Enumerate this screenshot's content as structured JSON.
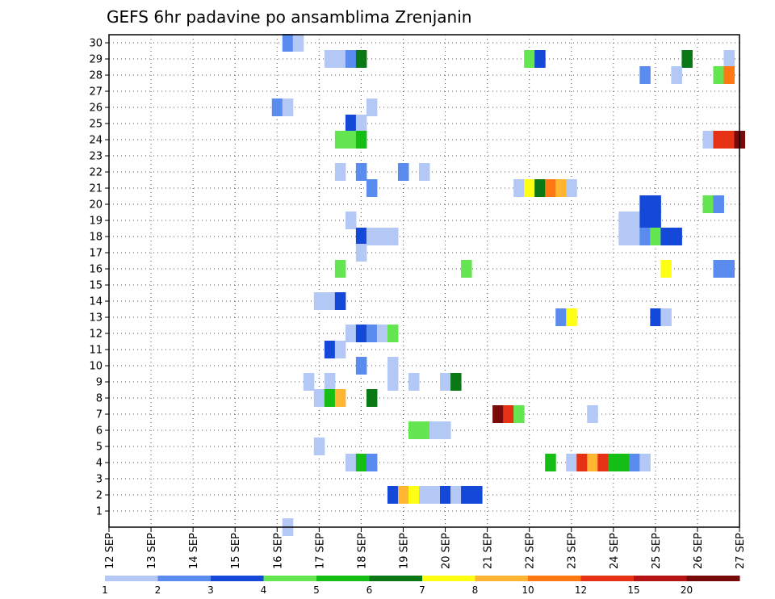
{
  "chart_data": {
    "type": "heatmap",
    "title": "GEFS 6hr padavine po ansamblima Zrenjanin",
    "xlabel": "",
    "ylabel": "",
    "x_range_days": [
      12,
      27
    ],
    "y_range": [
      1,
      30
    ],
    "grid": true,
    "x_ticks": [
      "12 SEP",
      "13 SEP",
      "14 SEP",
      "15 SEP",
      "16 SEP",
      "17 SEP",
      "18 SEP",
      "19 SEP",
      "20 SEP",
      "21 SEP",
      "22 SEP",
      "23 SEP",
      "24 SEP",
      "25 SEP",
      "26 SEP",
      "27 SEP"
    ],
    "y_ticks": [
      "1",
      "2",
      "3",
      "4",
      "5",
      "6",
      "7",
      "8",
      "9",
      "10",
      "11",
      "12",
      "13",
      "14",
      "15",
      "16",
      "17",
      "18",
      "19",
      "20",
      "21",
      "22",
      "23",
      "24",
      "25",
      "26",
      "27",
      "28",
      "29",
      "30"
    ],
    "colorbar": {
      "labels": [
        "1",
        "2",
        "3",
        "4",
        "5",
        "6",
        "7",
        "8",
        "10",
        "12",
        "15",
        "20"
      ],
      "colors": [
        "#b4c8f5",
        "#5a8cf0",
        "#1448d8",
        "#64e650",
        "#14be14",
        "#0a7814",
        "#ffff14",
        "#ffb432",
        "#ff7814",
        "#e63214",
        "#b41414",
        "#780a0a"
      ]
    },
    "points": [
      {
        "member": 30,
        "day": 16.25,
        "value": 2
      },
      {
        "member": 30,
        "day": 16.5,
        "value": 1
      },
      {
        "member": 29,
        "day": 17.25,
        "value": 1
      },
      {
        "member": 29,
        "day": 17.5,
        "value": 1
      },
      {
        "member": 29,
        "day": 17.75,
        "value": 2
      },
      {
        "member": 29,
        "day": 18.0,
        "value": 6
      },
      {
        "member": 29,
        "day": 22.0,
        "value": 4
      },
      {
        "member": 29,
        "day": 22.25,
        "value": 3
      },
      {
        "member": 29,
        "day": 25.75,
        "value": 6
      },
      {
        "member": 29,
        "day": 26.75,
        "value": 1
      },
      {
        "member": 28,
        "day": 24.75,
        "value": 2
      },
      {
        "member": 28,
        "day": 25.5,
        "value": 1
      },
      {
        "member": 28,
        "day": 26.5,
        "value": 4
      },
      {
        "member": 28,
        "day": 26.75,
        "value": 10
      },
      {
        "member": 26,
        "day": 16.0,
        "value": 2
      },
      {
        "member": 26,
        "day": 16.25,
        "value": 1
      },
      {
        "member": 26,
        "day": 18.25,
        "value": 1
      },
      {
        "member": 25,
        "day": 17.75,
        "value": 3
      },
      {
        "member": 25,
        "day": 18.0,
        "value": 1
      },
      {
        "member": 24,
        "day": 17.5,
        "value": 4
      },
      {
        "member": 24,
        "day": 17.75,
        "value": 4
      },
      {
        "member": 24,
        "day": 18.0,
        "value": 5
      },
      {
        "member": 24,
        "day": 26.25,
        "value": 1
      },
      {
        "member": 24,
        "day": 26.5,
        "value": 12
      },
      {
        "member": 24,
        "day": 26.75,
        "value": 12
      },
      {
        "member": 24,
        "day": 27.0,
        "value": 20
      },
      {
        "member": 22,
        "day": 17.5,
        "value": 1
      },
      {
        "member": 22,
        "day": 18.0,
        "value": 2
      },
      {
        "member": 22,
        "day": 19.0,
        "value": 2
      },
      {
        "member": 22,
        "day": 19.5,
        "value": 1
      },
      {
        "member": 21,
        "day": 18.25,
        "value": 2
      },
      {
        "member": 21,
        "day": 21.75,
        "value": 1
      },
      {
        "member": 21,
        "day": 22.0,
        "value": 7
      },
      {
        "member": 21,
        "day": 22.25,
        "value": 6
      },
      {
        "member": 21,
        "day": 22.5,
        "value": 10
      },
      {
        "member": 21,
        "day": 22.75,
        "value": 8
      },
      {
        "member": 21,
        "day": 23.0,
        "value": 1
      },
      {
        "member": 20,
        "day": 24.75,
        "value": 3
      },
      {
        "member": 20,
        "day": 25.0,
        "value": 3
      },
      {
        "member": 20,
        "day": 26.25,
        "value": 4
      },
      {
        "member": 20,
        "day": 26.5,
        "value": 2
      },
      {
        "member": 19,
        "day": 17.75,
        "value": 1
      },
      {
        "member": 19,
        "day": 24.25,
        "value": 1
      },
      {
        "member": 19,
        "day": 24.5,
        "value": 1
      },
      {
        "member": 19,
        "day": 24.75,
        "value": 3
      },
      {
        "member": 19,
        "day": 25.0,
        "value": 3
      },
      {
        "member": 18,
        "day": 18.0,
        "value": 3
      },
      {
        "member": 18,
        "day": 18.25,
        "value": 1
      },
      {
        "member": 18,
        "day": 18.5,
        "value": 1
      },
      {
        "member": 18,
        "day": 18.75,
        "value": 1
      },
      {
        "member": 18,
        "day": 24.25,
        "value": 1
      },
      {
        "member": 18,
        "day": 24.5,
        "value": 1
      },
      {
        "member": 18,
        "day": 24.75,
        "value": 2
      },
      {
        "member": 18,
        "day": 25.0,
        "value": 4
      },
      {
        "member": 18,
        "day": 25.25,
        "value": 3
      },
      {
        "member": 18,
        "day": 25.5,
        "value": 3
      },
      {
        "member": 17,
        "day": 18.0,
        "value": 1
      },
      {
        "member": 16,
        "day": 17.5,
        "value": 4
      },
      {
        "member": 16,
        "day": 20.5,
        "value": 4
      },
      {
        "member": 16,
        "day": 25.25,
        "value": 7
      },
      {
        "member": 16,
        "day": 26.5,
        "value": 2
      },
      {
        "member": 16,
        "day": 26.75,
        "value": 2
      },
      {
        "member": 14,
        "day": 17.0,
        "value": 1
      },
      {
        "member": 14,
        "day": 17.25,
        "value": 1
      },
      {
        "member": 14,
        "day": 17.5,
        "value": 3
      },
      {
        "member": 13,
        "day": 22.75,
        "value": 2
      },
      {
        "member": 13,
        "day": 23.0,
        "value": 7
      },
      {
        "member": 13,
        "day": 25.0,
        "value": 3
      },
      {
        "member": 13,
        "day": 25.25,
        "value": 1
      },
      {
        "member": 12,
        "day": 17.75,
        "value": 1
      },
      {
        "member": 12,
        "day": 18.0,
        "value": 3
      },
      {
        "member": 12,
        "day": 18.25,
        "value": 2
      },
      {
        "member": 12,
        "day": 18.5,
        "value": 1
      },
      {
        "member": 12,
        "day": 18.75,
        "value": 4
      },
      {
        "member": 11,
        "day": 17.25,
        "value": 3
      },
      {
        "member": 11,
        "day": 17.5,
        "value": 1
      },
      {
        "member": 10,
        "day": 18.0,
        "value": 2
      },
      {
        "member": 10,
        "day": 18.75,
        "value": 1
      },
      {
        "member": 9,
        "day": 16.75,
        "value": 1
      },
      {
        "member": 9,
        "day": 17.25,
        "value": 1
      },
      {
        "member": 9,
        "day": 18.75,
        "value": 1
      },
      {
        "member": 9,
        "day": 19.25,
        "value": 1
      },
      {
        "member": 9,
        "day": 20.0,
        "value": 1
      },
      {
        "member": 9,
        "day": 20.25,
        "value": 6
      },
      {
        "member": 8,
        "day": 17.0,
        "value": 1
      },
      {
        "member": 8,
        "day": 17.25,
        "value": 5
      },
      {
        "member": 8,
        "day": 17.5,
        "value": 8
      },
      {
        "member": 8,
        "day": 18.25,
        "value": 6
      },
      {
        "member": 7,
        "day": 21.25,
        "value": 20
      },
      {
        "member": 7,
        "day": 21.5,
        "value": 12
      },
      {
        "member": 7,
        "day": 21.75,
        "value": 4
      },
      {
        "member": 7,
        "day": 23.5,
        "value": 1
      },
      {
        "member": 6,
        "day": 19.25,
        "value": 4
      },
      {
        "member": 6,
        "day": 19.5,
        "value": 4
      },
      {
        "member": 6,
        "day": 19.75,
        "value": 1
      },
      {
        "member": 6,
        "day": 20.0,
        "value": 1
      },
      {
        "member": 5,
        "day": 17.0,
        "value": 1
      },
      {
        "member": 4,
        "day": 17.75,
        "value": 1
      },
      {
        "member": 4,
        "day": 18.0,
        "value": 5
      },
      {
        "member": 4,
        "day": 18.25,
        "value": 2
      },
      {
        "member": 4,
        "day": 22.5,
        "value": 5
      },
      {
        "member": 4,
        "day": 23.0,
        "value": 1
      },
      {
        "member": 4,
        "day": 23.25,
        "value": 12
      },
      {
        "member": 4,
        "day": 23.5,
        "value": 8
      },
      {
        "member": 4,
        "day": 23.75,
        "value": 12
      },
      {
        "member": 4,
        "day": 24.0,
        "value": 5
      },
      {
        "member": 4,
        "day": 24.25,
        "value": 5
      },
      {
        "member": 4,
        "day": 24.5,
        "value": 2
      },
      {
        "member": 4,
        "day": 24.75,
        "value": 1
      },
      {
        "member": 2,
        "day": 18.75,
        "value": 3
      },
      {
        "member": 2,
        "day": 19.0,
        "value": 8
      },
      {
        "member": 2,
        "day": 19.25,
        "value": 7
      },
      {
        "member": 2,
        "day": 19.5,
        "value": 1
      },
      {
        "member": 2,
        "day": 19.75,
        "value": 1
      },
      {
        "member": 2,
        "day": 20.0,
        "value": 3
      },
      {
        "member": 2,
        "day": 20.25,
        "value": 1
      },
      {
        "member": 2,
        "day": 20.5,
        "value": 3
      },
      {
        "member": 2,
        "day": 20.75,
        "value": 3
      },
      {
        "member": 0,
        "day": 16.25,
        "value": 1
      }
    ]
  }
}
